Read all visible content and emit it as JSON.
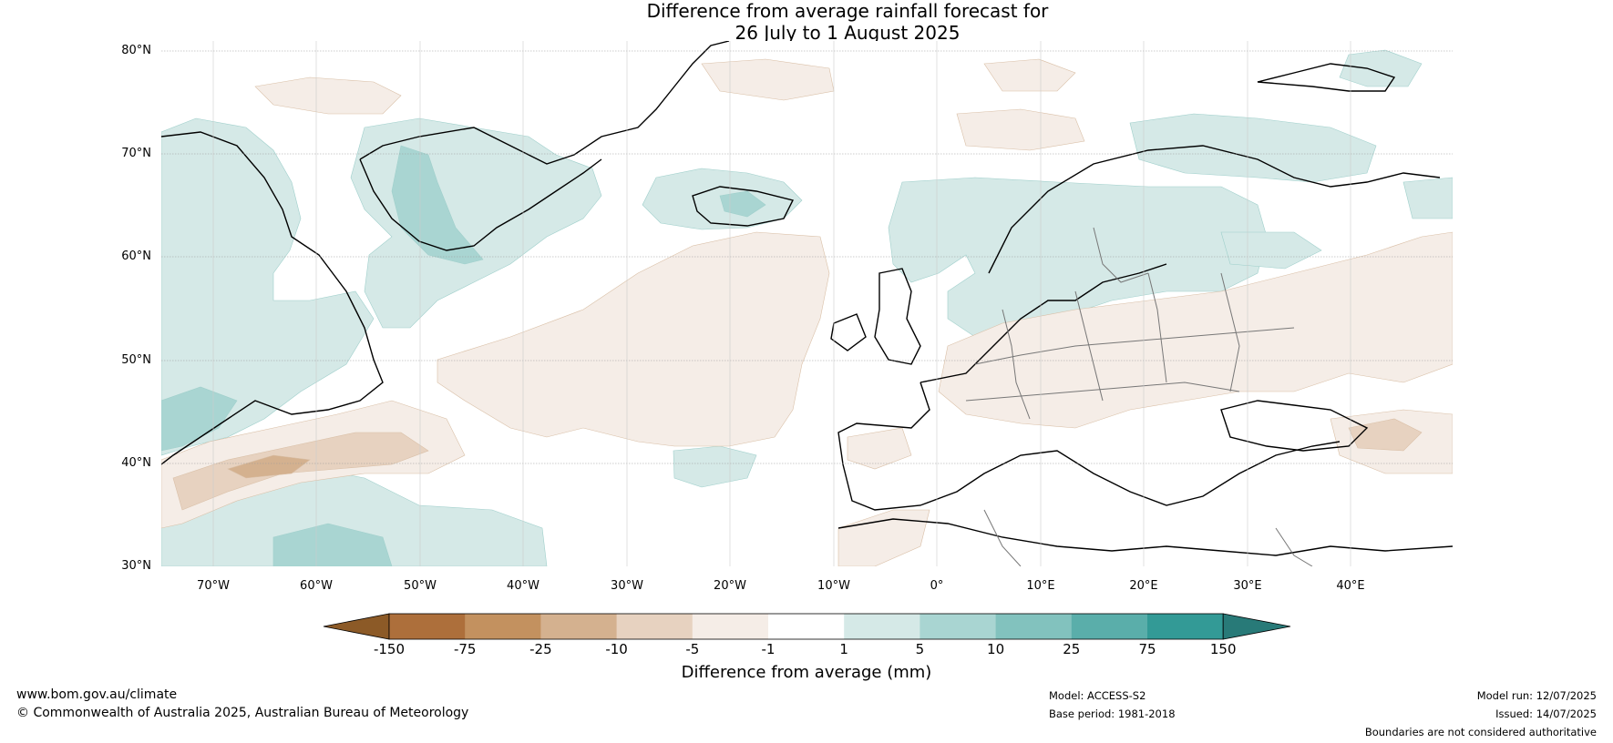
{
  "title": {
    "line1": "Difference from average rainfall forecast for",
    "line2": "26 July to 1 August 2025"
  },
  "map": {
    "latitude_labels": [
      "80°N",
      "70°N",
      "60°N",
      "50°N",
      "40°N",
      "30°N"
    ],
    "longitude_labels": [
      "70°W",
      "60°W",
      "50°W",
      "40°W",
      "30°W",
      "20°W",
      "10°W",
      "0°",
      "10°E",
      "20°E",
      "30°E",
      "40°E"
    ],
    "extent": {
      "lon_min": -75,
      "lon_max": 50,
      "lat_min": 30,
      "lat_max": 81
    }
  },
  "legend": {
    "title": "Difference from average (mm)",
    "ticks": [
      "-150",
      "-75",
      "-25",
      "-10",
      "-5",
      "-1",
      "1",
      "5",
      "10",
      "25",
      "75",
      "150"
    ],
    "colors": [
      "#8c5a27",
      "#ad6f3b",
      "#c3915f",
      "#d4b18f",
      "#e7d2c0",
      "#f5ede7",
      "#ffffff",
      "#d5e9e7",
      "#a9d5d2",
      "#82c2be",
      "#5aaeaa",
      "#339a96",
      "#287a78"
    ]
  },
  "footer": {
    "website": "www.bom.gov.au/climate",
    "copyright": "© Commonwealth of Australia 2025, Australian Bureau of Meteorology",
    "model": "Model: ACCESS-S2",
    "base_period": "Base period: 1981-2018",
    "model_run": "Model run: 12/07/2025",
    "issued": "Issued: 14/07/2025",
    "disclaimer": "Boundaries are not considered authoritative"
  }
}
